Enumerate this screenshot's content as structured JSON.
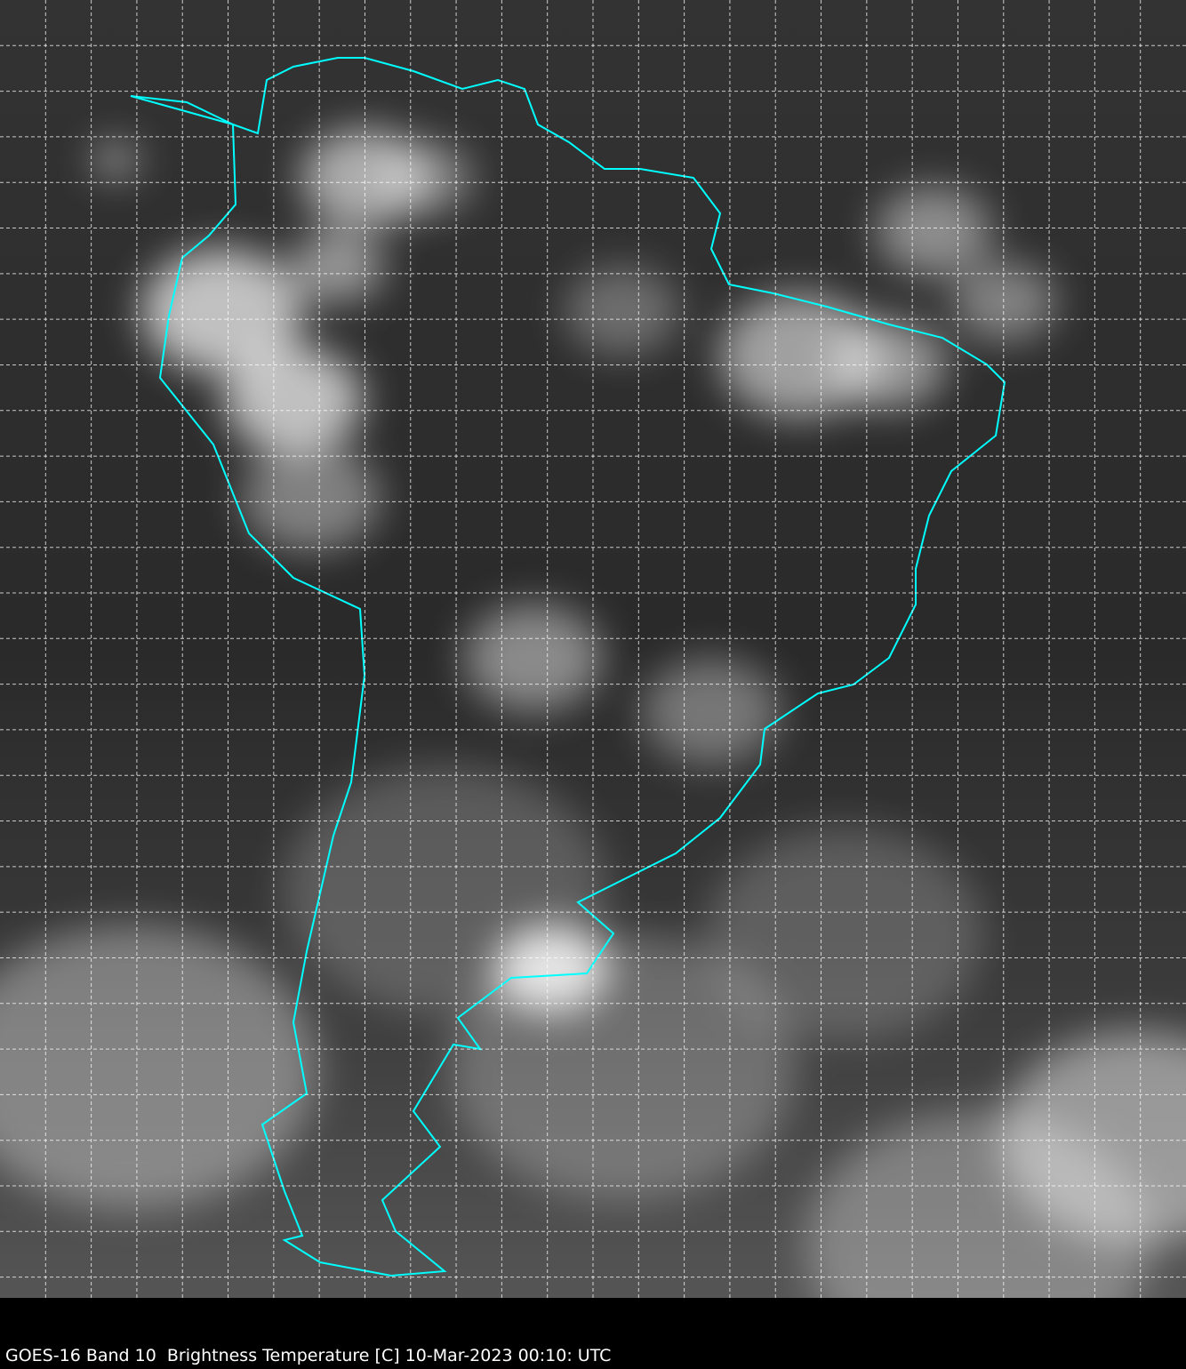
{
  "caption": "GOES-16 Band 10  Brightness Temperature [C] 10-Mar-2023 00:10: UTC",
  "colors": {
    "outline": "#00ffff",
    "grid": "#ffffff",
    "background": "#000000"
  },
  "map": {
    "region": "South America",
    "grid": true,
    "grid_style": "dashed",
    "colormap": "grayscale"
  }
}
